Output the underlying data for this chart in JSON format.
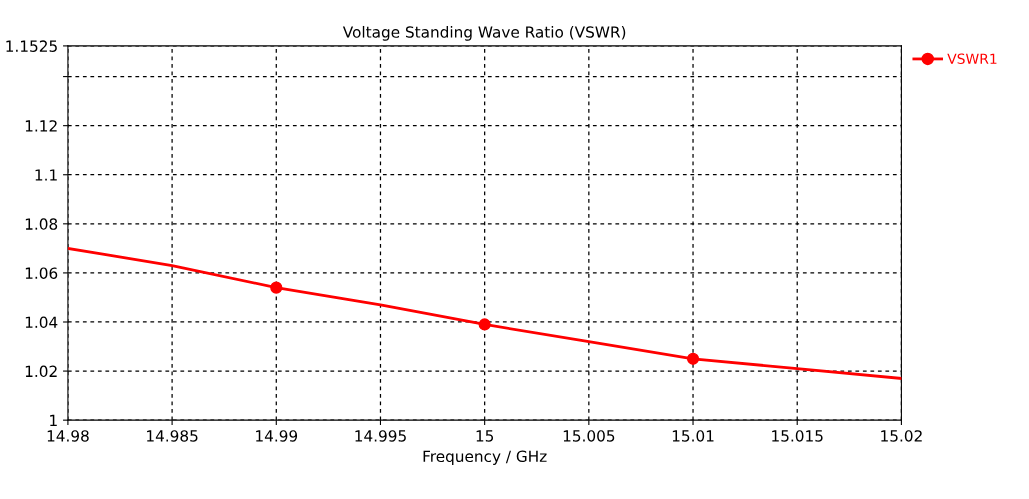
{
  "chart_data": {
    "type": "line",
    "title": "Voltage Standing Wave Ratio (VSWR)",
    "xlabel": "Frequency / GHz",
    "xlim": [
      14.98,
      15.02
    ],
    "xticks": [
      14.98,
      14.985,
      14.99,
      14.995,
      15,
      15.005,
      15.01,
      15.015,
      15.02
    ],
    "ylim": [
      1,
      1.1525
    ],
    "yticks": [
      1,
      1.02,
      1.04,
      1.06,
      1.08,
      1.1,
      1.12,
      {
        "value": 1.14,
        "label": null
      },
      1.1525
    ],
    "grid": true,
    "legend": "top right",
    "series": [
      {
        "name": "VSWR1",
        "color": "#ff0000",
        "marker": "none",
        "x": [
          14.98,
          14.985,
          14.99,
          14.995,
          15,
          15.005,
          15.01,
          15.015,
          15.02
        ],
        "values": [
          1.07,
          1.063,
          1.054,
          1.047,
          1.039,
          1.032,
          1.025,
          1.021,
          1.017
        ]
      },
      {
        "color": "#ff0000",
        "type": "scatter",
        "marker": "circle",
        "x": [
          14.99,
          15,
          15.01
        ],
        "values": [
          1.054,
          1.039,
          1.025
        ]
      }
    ]
  }
}
